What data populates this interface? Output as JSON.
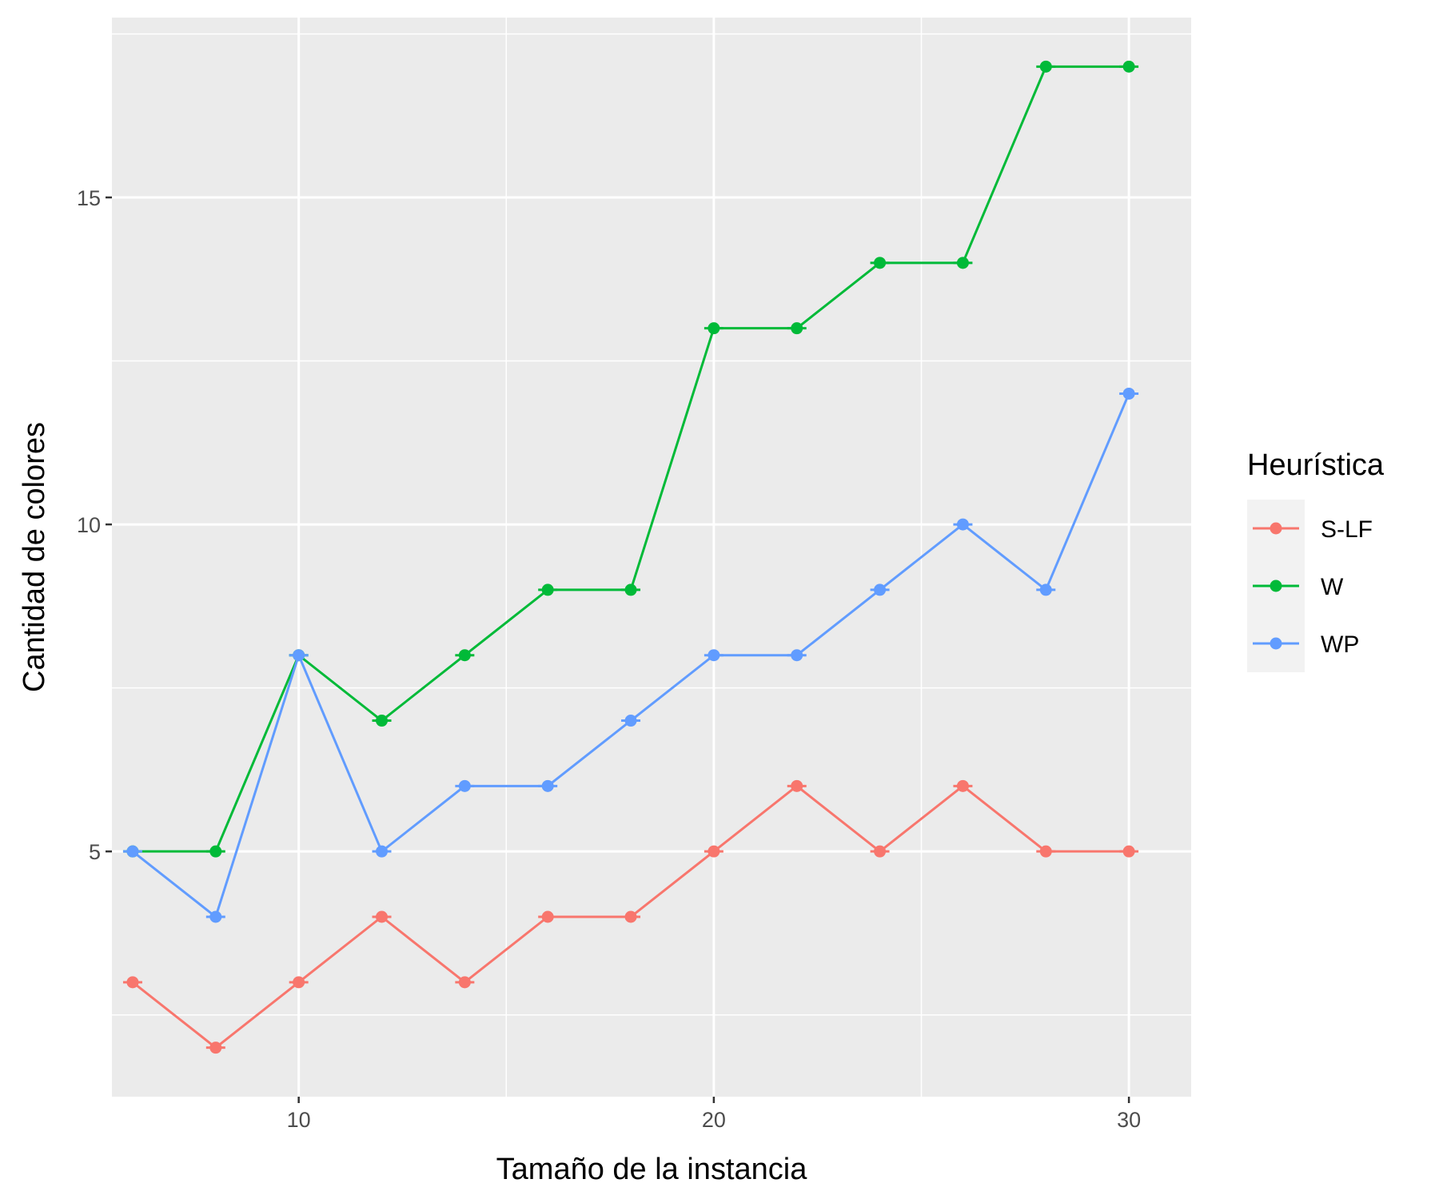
{
  "chart_data": {
    "type": "line",
    "xlabel": "Tamaño de la instancia",
    "ylabel": "Cantidad de colores",
    "x": [
      6,
      8,
      10,
      12,
      14,
      16,
      18,
      20,
      22,
      24,
      26,
      28,
      30
    ],
    "xlim": [
      5.5,
      31.5
    ],
    "ylim": [
      1.25,
      17.75
    ],
    "x_ticks": [
      10,
      20,
      30
    ],
    "y_ticks": [
      5,
      10,
      15
    ],
    "x_tick_labels": [
      "10",
      "20",
      "30"
    ],
    "y_tick_labels": [
      "5",
      "10",
      "15"
    ],
    "grid": true,
    "legend": {
      "title": "Heurística",
      "position": "right"
    },
    "series": [
      {
        "name": "S-LF",
        "color": "#F8766D",
        "values": [
          3,
          2,
          3,
          4,
          3,
          4,
          4,
          5,
          6,
          5,
          6,
          5,
          5
        ]
      },
      {
        "name": "W",
        "color": "#00BA38",
        "values": [
          5,
          5,
          8,
          7,
          8,
          9,
          9,
          13,
          13,
          14,
          14,
          17,
          17
        ]
      },
      {
        "name": "WP",
        "color": "#619CFF",
        "values": [
          5,
          4,
          8,
          5,
          6,
          6,
          7,
          8,
          8,
          9,
          10,
          9,
          12
        ]
      }
    ],
    "colors": {
      "panel_background": "#EBEBEB",
      "grid": "#FFFFFF",
      "tick": "#333333"
    }
  }
}
